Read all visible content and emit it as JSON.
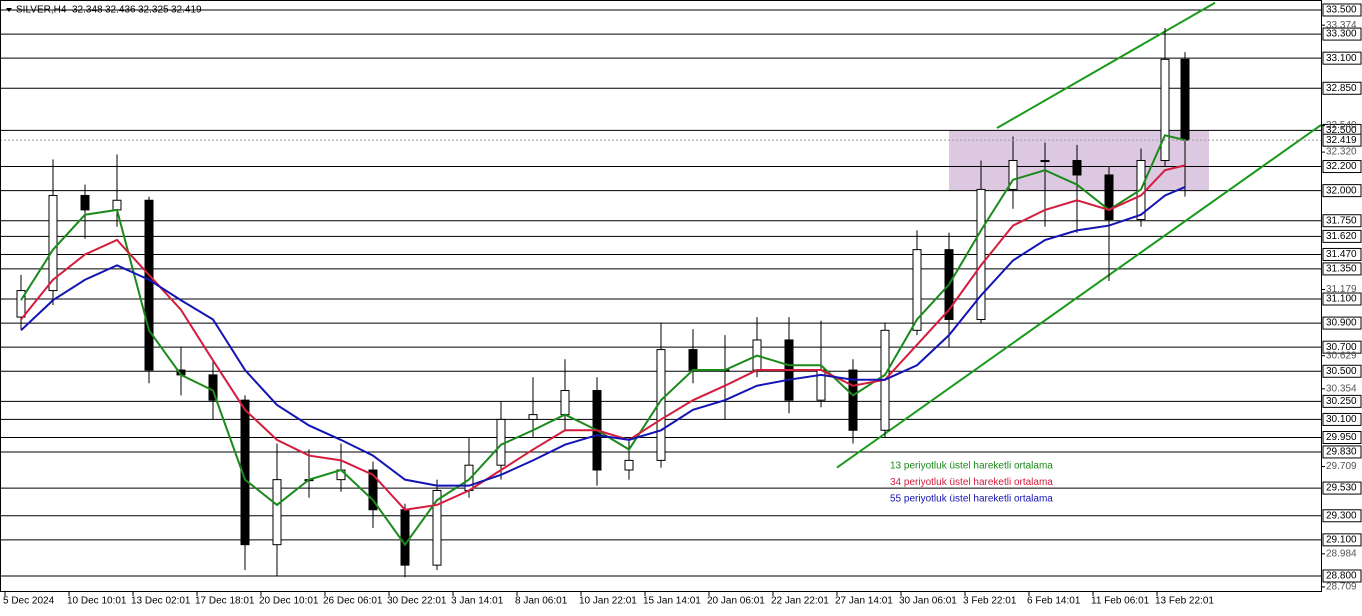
{
  "chart_data": {
    "type": "candlestick",
    "title": "SILVER,H4",
    "header_values": [
      32.348,
      32.436,
      32.325,
      32.419
    ],
    "x": [
      4,
      12,
      20,
      28,
      36,
      44,
      52,
      60,
      68,
      76,
      84,
      92,
      100,
      108,
      116,
      124,
      132,
      140,
      148,
      156,
      164,
      172,
      180,
      188,
      196,
      204,
      212,
      220,
      228,
      236,
      244,
      252,
      260,
      268,
      276,
      284,
      290,
      295
    ],
    "open": [
      30.95,
      31.17,
      31.96,
      31.84,
      31.92,
      30.51,
      30.47,
      30.26,
      29.06,
      29.6,
      29.6,
      29.68,
      29.35,
      28.89,
      29.51,
      29.72,
      30.1,
      30.14,
      30.34,
      29.68,
      29.76,
      30.68,
      30.51,
      30.51,
      30.76,
      30.26,
      30.51,
      30.01,
      30.84,
      31.51,
      30.93,
      32.01,
      32.25,
      32.25,
      32.13,
      31.76,
      32.25,
      33.09
    ],
    "high": [
      31.3,
      32.26,
      32.05,
      32.3,
      31.95,
      30.7,
      30.6,
      30.3,
      29.9,
      29.85,
      29.9,
      29.75,
      29.4,
      29.6,
      29.95,
      30.25,
      30.45,
      30.6,
      30.45,
      29.95,
      30.9,
      30.85,
      30.8,
      30.95,
      30.95,
      30.92,
      30.6,
      30.9,
      31.67,
      31.65,
      32.25,
      32.45,
      32.4,
      32.38,
      32.2,
      32.35,
      33.35,
      33.15
    ],
    "low": [
      30.85,
      31.05,
      31.6,
      31.7,
      30.4,
      30.3,
      30.1,
      28.85,
      28.8,
      29.45,
      29.5,
      29.2,
      28.79,
      28.85,
      29.45,
      29.6,
      29.95,
      30.0,
      29.55,
      29.6,
      29.7,
      30.4,
      30.1,
      30.45,
      30.15,
      30.2,
      29.9,
      29.95,
      30.8,
      30.7,
      30.9,
      31.85,
      31.7,
      31.65,
      31.25,
      31.7,
      32.2,
      31.95
    ],
    "close": [
      31.17,
      31.96,
      31.84,
      31.92,
      30.51,
      30.47,
      30.26,
      29.06,
      29.6,
      29.6,
      29.68,
      29.35,
      28.89,
      29.51,
      29.72,
      30.1,
      30.14,
      30.34,
      29.68,
      29.76,
      30.68,
      30.51,
      30.51,
      30.76,
      30.26,
      30.51,
      30.01,
      30.84,
      31.51,
      30.93,
      32.01,
      32.25,
      32.25,
      32.13,
      31.76,
      32.25,
      33.09,
      32.42
    ],
    "candle_color": "#000000",
    "series": [
      {
        "name": "13 periyotluk üstel hareketli ortalama",
        "color": "#1a8a1a",
        "values": [
          31.09,
          31.51,
          31.8,
          31.84,
          30.84,
          30.47,
          30.34,
          29.6,
          29.39,
          29.6,
          29.68,
          29.43,
          29.06,
          29.43,
          29.6,
          29.89,
          30.01,
          30.14,
          30.01,
          29.85,
          30.26,
          30.51,
          30.51,
          30.63,
          30.55,
          30.55,
          30.3,
          30.47,
          30.93,
          31.22,
          31.67,
          32.09,
          32.17,
          32.05,
          31.84,
          32.01,
          32.46,
          32.42
        ]
      },
      {
        "name": "34 periyotluk üstel hareketli ortalama",
        "color": "#d41c3c",
        "values": [
          30.93,
          31.26,
          31.47,
          31.59,
          31.3,
          31.01,
          30.59,
          30.18,
          29.93,
          29.8,
          29.76,
          29.64,
          29.35,
          29.39,
          29.51,
          29.68,
          29.85,
          30.01,
          30.01,
          29.93,
          30.1,
          30.26,
          30.38,
          30.51,
          30.51,
          30.51,
          30.38,
          30.43,
          30.72,
          31.01,
          31.38,
          31.71,
          31.84,
          31.92,
          31.84,
          31.96,
          32.17,
          32.21
        ]
      },
      {
        "name": "55 periyotluk üstel hareketli ortalama",
        "color": "#1414b4",
        "values": [
          30.84,
          31.09,
          31.26,
          31.38,
          31.26,
          31.09,
          30.93,
          30.51,
          30.22,
          30.05,
          29.93,
          29.8,
          29.6,
          29.55,
          29.55,
          29.64,
          29.76,
          29.89,
          29.97,
          29.93,
          30.01,
          30.18,
          30.26,
          30.38,
          30.43,
          30.47,
          30.43,
          30.43,
          30.55,
          30.8,
          31.13,
          31.42,
          31.59,
          31.67,
          31.71,
          31.8,
          31.96,
          32.03
        ]
      }
    ],
    "zone": {
      "x": [
        236,
        301
      ],
      "y": [
        32.0,
        32.5
      ],
      "color": "#dcc8e0"
    },
    "trendlines": [
      {
        "x": [
          248,
          302.5
        ],
        "y": [
          32.52,
          33.56
        ],
        "color": "#1a9a1a"
      },
      {
        "x": [
          208,
          329
        ],
        "y": [
          29.7,
          32.545
        ],
        "color": "#1a9a1a"
      }
    ],
    "xlim": [
      0,
      329.25
    ],
    "ylim": [
      28.667,
      33.583
    ],
    "xticks": [
      {
        "value": 0,
        "label": "5 Dec 2024"
      },
      {
        "value": 16,
        "label": "10 Dec 10:01"
      },
      {
        "value": 32,
        "label": "13 Dec 02:01"
      },
      {
        "value": 48,
        "label": "17 Dec 18:01"
      },
      {
        "value": 64,
        "label": "20 Dec 10:01"
      },
      {
        "value": 80,
        "label": "26 Dec 06:01"
      },
      {
        "value": 96,
        "label": "30 Dec 22:01"
      },
      {
        "value": 112,
        "label": "3 Jan 14:01"
      },
      {
        "value": 128,
        "label": "8 Jan 06:01"
      },
      {
        "value": 144,
        "label": "10 Jan 22:01"
      },
      {
        "value": 160,
        "label": "15 Jan 14:01"
      },
      {
        "value": 176,
        "label": "20 Jan 06:01"
      },
      {
        "value": 192,
        "label": "22 Jan 22:01"
      },
      {
        "value": 208,
        "label": "27 Jan 14:01"
      },
      {
        "value": 224,
        "label": "30 Jan 06:01"
      },
      {
        "value": 240,
        "label": "3 Feb 22:01"
      },
      {
        "value": 256,
        "label": "6 Feb 14:01"
      },
      {
        "value": 272,
        "label": "11 Feb 06:01"
      },
      {
        "value": 288,
        "label": "13 Feb 22:01"
      }
    ],
    "yticks": [
      {
        "value": 33.5,
        "label": "33.500"
      },
      {
        "value": 33.3,
        "label": "33.300"
      },
      {
        "value": 33.1,
        "label": "33.100"
      },
      {
        "value": 32.85,
        "label": "32.850"
      },
      {
        "value": 32.5,
        "label": "32.500"
      },
      {
        "value": 32.2,
        "label": "32.200"
      },
      {
        "value": 32.0,
        "label": "32.000"
      },
      {
        "value": 31.75,
        "label": "31.750"
      },
      {
        "value": 31.62,
        "label": "31.620"
      },
      {
        "value": 31.47,
        "label": "31.470"
      },
      {
        "value": 31.35,
        "label": "31.350"
      },
      {
        "value": 31.1,
        "label": "31.100"
      },
      {
        "value": 30.9,
        "label": "30.900"
      },
      {
        "value": 30.7,
        "label": "30.700"
      },
      {
        "value": 30.5,
        "label": "30.500"
      },
      {
        "value": 30.25,
        "label": "30.250"
      },
      {
        "value": 30.1,
        "label": "30.100"
      },
      {
        "value": 29.95,
        "label": "29.950"
      },
      {
        "value": 29.83,
        "label": "29.830"
      },
      {
        "value": 29.53,
        "label": "29.530"
      },
      {
        "value": 29.3,
        "label": "29.300"
      },
      {
        "value": 29.1,
        "label": "29.100"
      },
      {
        "value": 28.8,
        "label": "28.800"
      }
    ],
    "minor_yticks": [
      33.374,
      {
        "value": 32.54,
        "label": "32.540"
      },
      {
        "value": 32.32,
        "label": "32.320"
      },
      31.179,
      30.629,
      30.354,
      29.709,
      28.984,
      28.709
    ],
    "current_price": 32.419
  }
}
